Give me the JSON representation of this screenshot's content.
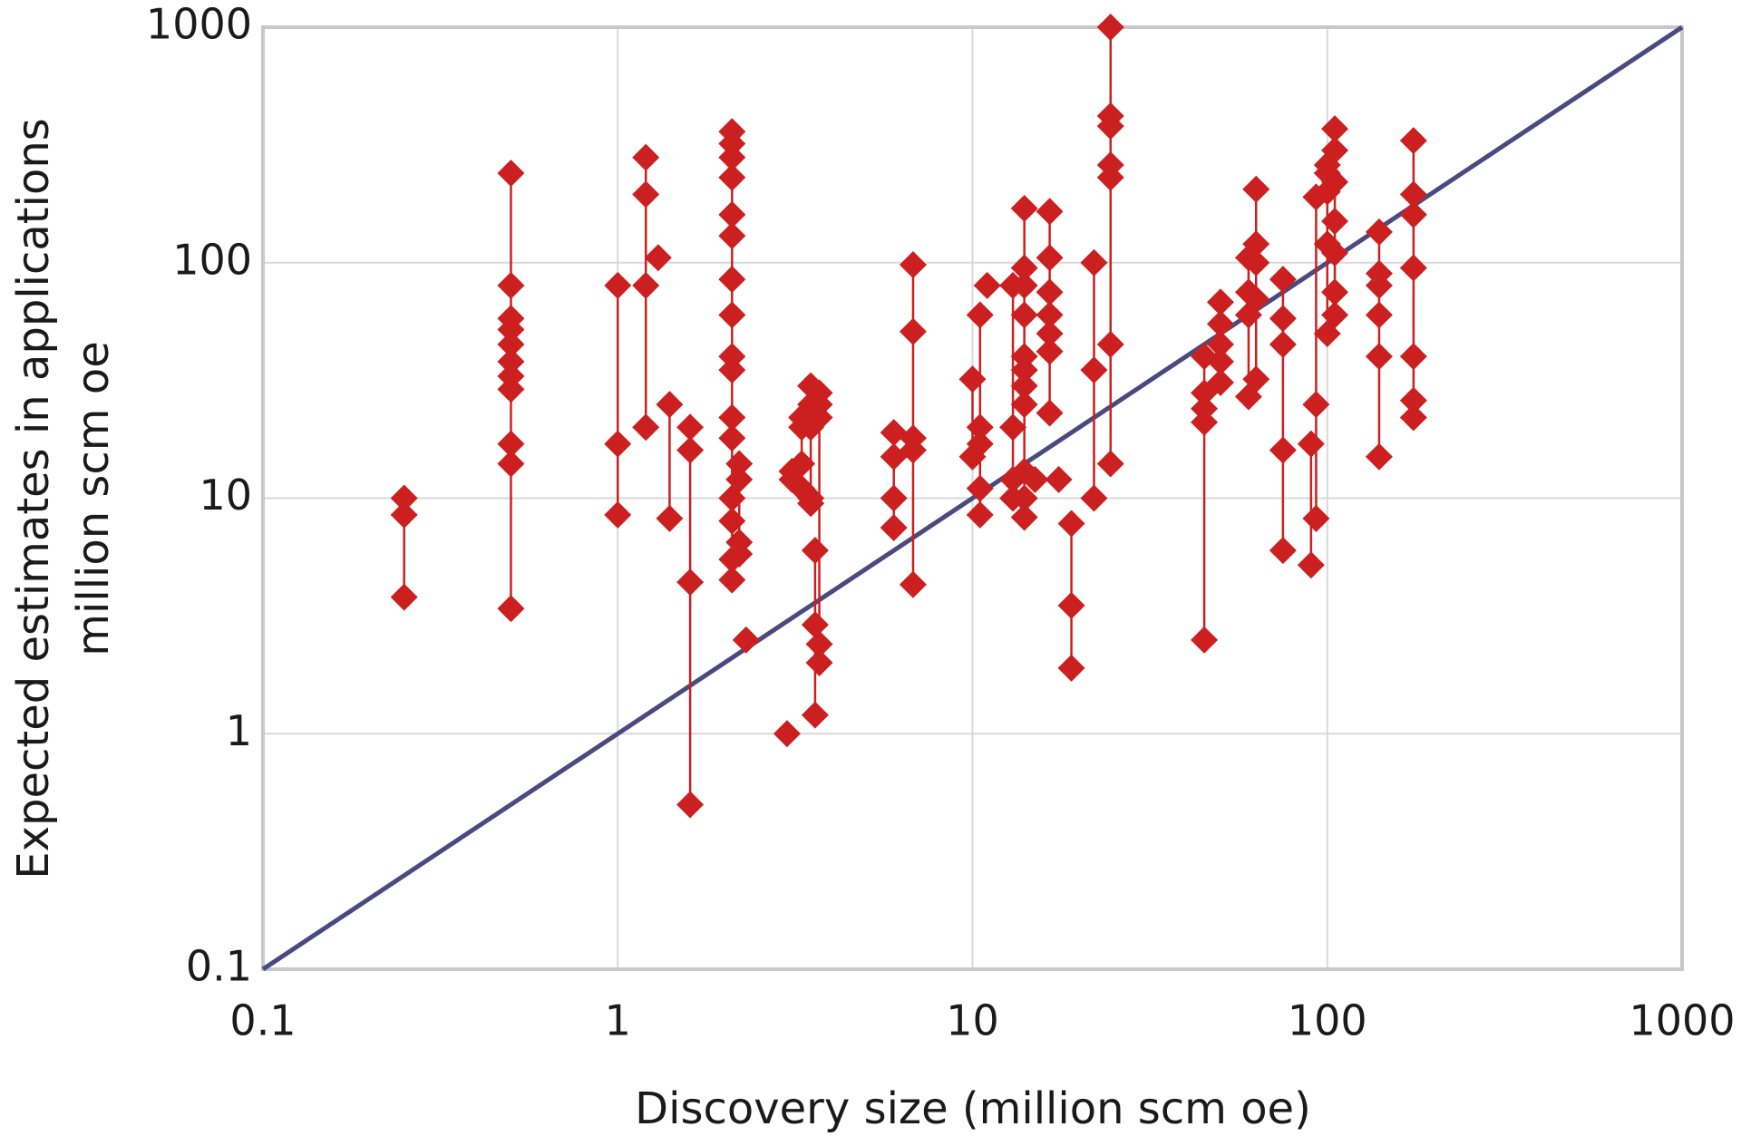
{
  "chart_data": {
    "type": "scatter",
    "xlabel": "Discovery size (million scm oe)",
    "ylabel": [
      "Expected estimates in applications",
      "million scm oe"
    ],
    "xscale": "log",
    "yscale": "log",
    "grid": true,
    "xlim": [
      0.1,
      1000
    ],
    "ylim": [
      0.1,
      1000
    ],
    "xticks": [
      0.1,
      1,
      10,
      100,
      1000
    ],
    "yticks": [
      0.1,
      1,
      10,
      100,
      1000
    ],
    "series": [
      {
        "type": "scatter",
        "color": "#cc1f1f",
        "x": [
          0.25,
          0.25,
          0.25,
          0.5,
          0.5,
          0.5,
          0.5,
          0.5,
          0.5,
          0.5,
          0.5,
          0.5,
          0.5,
          0.5,
          1,
          1,
          1,
          1.2,
          1.2,
          1.2,
          1.2,
          1.3,
          1.4,
          1.4,
          1.6,
          1.6,
          1.6,
          1.6,
          2.1,
          2.1,
          2.1,
          2.1,
          2.1,
          2.1,
          2.1,
          2.1,
          2.1,
          2.1,
          2.1,
          2.1,
          2.1,
          2.1,
          2.1,
          2.1,
          2.2,
          2.2,
          2.2,
          2.2,
          2.3,
          3,
          3.1,
          3.1,
          3.3,
          3.3,
          3.3,
          3.3,
          3.5,
          3.5,
          3.5,
          3.5,
          3.5,
          3.6,
          3.6,
          3.6,
          3.7,
          3.7,
          3.7,
          3.7,
          3.7,
          6,
          6,
          6,
          6,
          6.8,
          6.8,
          6.8,
          6.8,
          6.8,
          10,
          10,
          10.5,
          10.5,
          10.5,
          10.5,
          10.5,
          11,
          13,
          13,
          13,
          13,
          14,
          14,
          14,
          14,
          14,
          14,
          14,
          14,
          14,
          14,
          14,
          15,
          16.5,
          16.5,
          16.5,
          16.5,
          16.5,
          16.5,
          16.5,
          17.5,
          19,
          19,
          19,
          22,
          22,
          22,
          24.5,
          24.5,
          24.5,
          24.5,
          24.5,
          24.5,
          24.5,
          45,
          45,
          45,
          45,
          45,
          50,
          50,
          50,
          50,
          50,
          60,
          60,
          60,
          60,
          63,
          63,
          63,
          63,
          63,
          75,
          75,
          75,
          75,
          75,
          90,
          90,
          93,
          93,
          93,
          100,
          100,
          100,
          100,
          100,
          105,
          105,
          105,
          105,
          105,
          105,
          105,
          140,
          140,
          140,
          140,
          140,
          140,
          175,
          175,
          175,
          175,
          175,
          175,
          175
        ],
        "values": [
          10,
          8.5,
          3.8,
          240,
          80,
          58,
          52,
          45,
          38,
          33,
          29,
          17,
          14,
          3.4,
          80,
          17,
          8.5,
          280,
          195,
          80,
          20,
          105,
          25,
          8.2,
          20,
          16,
          4.4,
          0.5,
          360,
          320,
          280,
          230,
          160,
          130,
          85,
          60,
          40,
          35,
          22,
          18,
          10,
          8,
          5.5,
          4.5,
          14,
          12,
          6.5,
          5.8,
          2.5,
          1,
          13,
          12,
          22,
          20,
          14,
          11,
          30,
          25,
          20,
          10,
          9.5,
          6,
          2.9,
          1.2,
          28,
          25,
          22,
          2.4,
          2,
          19,
          15,
          10,
          7.5,
          98,
          51,
          18,
          16,
          4.3,
          15,
          32,
          60,
          20,
          17,
          11,
          8.5,
          80,
          80,
          20,
          12,
          10,
          170,
          95,
          80,
          60,
          40,
          35,
          30,
          25,
          13,
          10,
          8.3,
          12,
          165,
          105,
          75,
          60,
          50,
          42,
          23,
          12,
          7.8,
          3.5,
          1.9,
          100,
          35,
          10,
          1000,
          420,
          380,
          260,
          230,
          45,
          14,
          40,
          28,
          24,
          21,
          2.5,
          68,
          55,
          45,
          38,
          31,
          105,
          75,
          60,
          27,
          205,
          120,
          100,
          70,
          32,
          85,
          58,
          45,
          16,
          6,
          17,
          5.2,
          190,
          25,
          8.2,
          260,
          240,
          200,
          120,
          50,
          370,
          300,
          220,
          150,
          110,
          75,
          60,
          135,
          90,
          80,
          60,
          40,
          15,
          330,
          195,
          160,
          95,
          40,
          26,
          22
        ]
      },
      {
        "type": "line",
        "color": "#4a4a80",
        "x": [
          0.1,
          1000
        ],
        "values": [
          0.1,
          1000
        ]
      }
    ]
  }
}
